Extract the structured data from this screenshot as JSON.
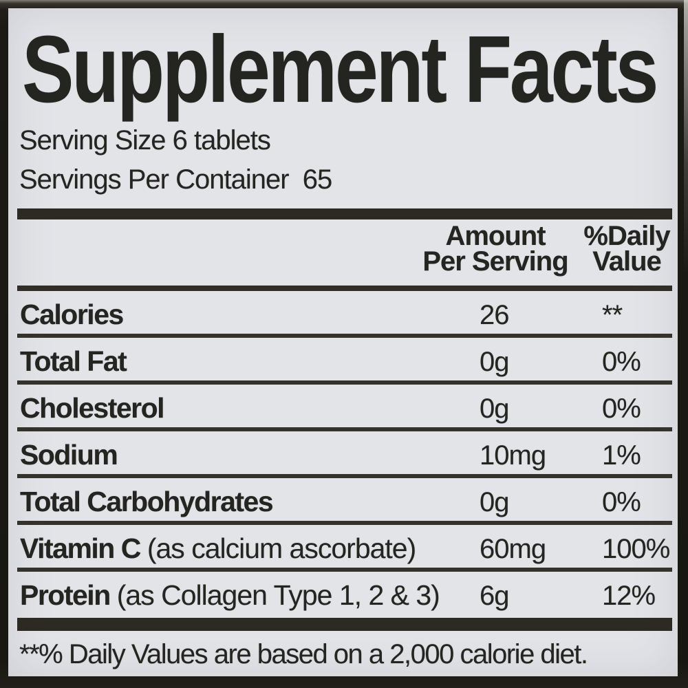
{
  "colors": {
    "label_background": "#e3e4e8",
    "ink": "#242421",
    "frame": "#1b1a15",
    "rule": "#34322b"
  },
  "supplement_facts": {
    "title": "Supplement Facts",
    "serving_size": "Serving Size 6 tablets",
    "servings_per_container": "Servings Per Container  65",
    "header": {
      "amount": "Amount\nPer Serving",
      "daily_value": "%Daily\nValue"
    },
    "rows": [
      {
        "name": "Calories",
        "note": "",
        "amount": "26",
        "daily_value": "**"
      },
      {
        "name": "Total Fat",
        "note": "",
        "amount": "0g",
        "daily_value": "0%"
      },
      {
        "name": "Cholesterol",
        "note": "",
        "amount": "0g",
        "daily_value": "0%"
      },
      {
        "name": "Sodium",
        "note": "",
        "amount": "10mg",
        "daily_value": "1%"
      },
      {
        "name": "Total Carbohydrates",
        "note": "",
        "amount": "0g",
        "daily_value": "0%"
      },
      {
        "name": "Vitamin C",
        "note": "(as calcium ascorbate)",
        "amount": "60mg",
        "daily_value": "100%"
      },
      {
        "name": "Protein",
        "note": "(as Collagen Type 1, 2 & 3)",
        "amount": "6g",
        "daily_value": "12%"
      }
    ],
    "footnote": "**% Daily Values are based on a 2,000 calorie diet."
  }
}
